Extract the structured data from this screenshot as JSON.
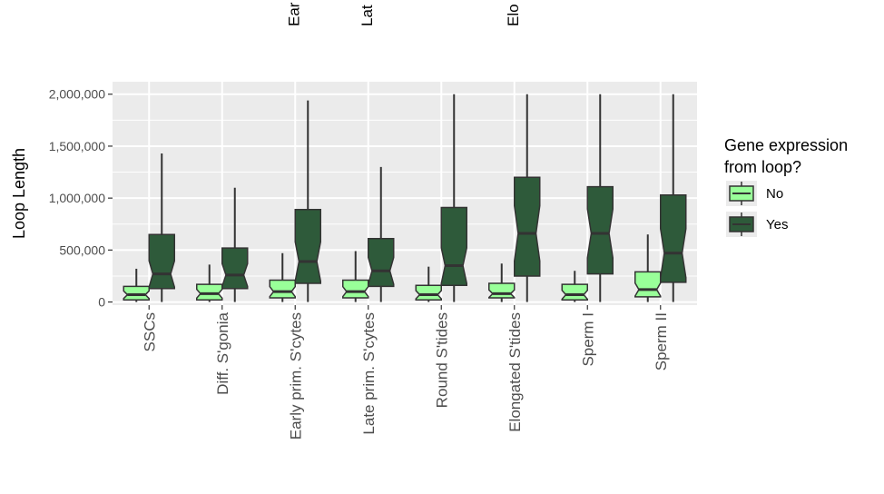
{
  "chart_data": {
    "type": "boxplot",
    "ylabel": "Loop Length",
    "ylim": [
      -30000,
      2120000
    ],
    "yticks": [
      0,
      500000,
      1000000,
      1500000,
      2000000
    ],
    "ytick_labels": [
      "0",
      "500,000",
      "1,000,000",
      "1,500,000",
      "2,000,000"
    ],
    "categories": [
      "SSCs",
      "Diff. S'gonia",
      "Early prim. S'cytes",
      "Late prim. S'cytes",
      "Round S'tides",
      "Elongated S'tides",
      "Sperm I",
      "Sperm II"
    ],
    "clipped_top_labels": [
      "Ear",
      "Lat",
      "Elo"
    ],
    "legend": {
      "title_lines": [
        "Gene expression",
        "from loop?"
      ],
      "entries": [
        {
          "label": "No",
          "color": "#99ff99"
        },
        {
          "label": "Yes",
          "color": "#2e5a3a"
        }
      ]
    },
    "series": [
      {
        "name": "No",
        "color": "#99ff99",
        "boxes": [
          {
            "min": 0,
            "q1": 20000,
            "median": 70000,
            "q3": 150000,
            "max": 320000
          },
          {
            "min": 0,
            "q1": 20000,
            "median": 80000,
            "q3": 170000,
            "max": 360000
          },
          {
            "min": 0,
            "q1": 40000,
            "median": 100000,
            "q3": 210000,
            "max": 470000
          },
          {
            "min": 0,
            "q1": 40000,
            "median": 100000,
            "q3": 210000,
            "max": 490000
          },
          {
            "min": 0,
            "q1": 20000,
            "median": 70000,
            "q3": 160000,
            "max": 340000
          },
          {
            "min": 0,
            "q1": 40000,
            "median": 80000,
            "q3": 180000,
            "max": 370000
          },
          {
            "min": 0,
            "q1": 20000,
            "median": 70000,
            "q3": 170000,
            "max": 300000
          },
          {
            "min": 0,
            "q1": 50000,
            "median": 120000,
            "q3": 290000,
            "max": 650000
          }
        ]
      },
      {
        "name": "Yes",
        "color": "#2e5a3a",
        "boxes": [
          {
            "min": 0,
            "q1": 130000,
            "median": 270000,
            "q3": 650000,
            "max": 1430000
          },
          {
            "min": 0,
            "q1": 130000,
            "median": 260000,
            "q3": 520000,
            "max": 1100000
          },
          {
            "min": 0,
            "q1": 180000,
            "median": 390000,
            "q3": 890000,
            "max": 1940000
          },
          {
            "min": 0,
            "q1": 150000,
            "median": 300000,
            "q3": 610000,
            "max": 1300000
          },
          {
            "min": 0,
            "q1": 160000,
            "median": 350000,
            "q3": 910000,
            "max": 2000000
          },
          {
            "min": 0,
            "q1": 250000,
            "median": 660000,
            "q3": 1200000,
            "max": 2000000
          },
          {
            "min": 0,
            "q1": 270000,
            "median": 660000,
            "q3": 1110000,
            "max": 2000000
          },
          {
            "min": 0,
            "q1": 190000,
            "median": 470000,
            "q3": 1030000,
            "max": 2000000
          }
        ]
      }
    ]
  }
}
